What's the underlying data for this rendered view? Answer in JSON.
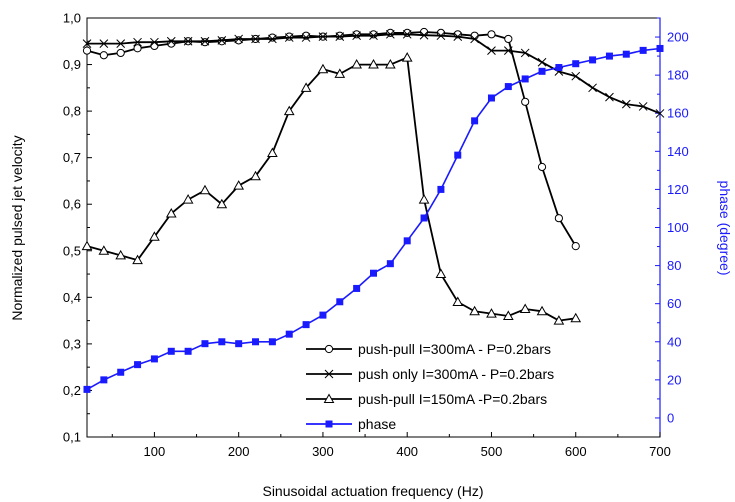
{
  "chart_data": {
    "type": "line",
    "xlabel": "Sinusoidal actuation frequency (Hz)",
    "ylabel": "Normalized pulsed jet velocity",
    "y2label": "phase (degree)",
    "xlim": [
      20,
      700
    ],
    "ylim": [
      0.1,
      1.0
    ],
    "y2lim": [
      -10,
      210
    ],
    "x_ticks": [
      100,
      200,
      300,
      400,
      500,
      600,
      700
    ],
    "y_ticks": [
      "0,1",
      "0,2",
      "0,3",
      "0,4",
      "0,5",
      "0,6",
      "0,7",
      "0,8",
      "0,9",
      "1,0"
    ],
    "y2_ticks": [
      0,
      20,
      40,
      60,
      80,
      100,
      120,
      140,
      160,
      180,
      200
    ],
    "legend_position": "bottom-right",
    "colors": {
      "black": "#000000",
      "phase": "#1a1aff",
      "axis_right": "#1a1aff"
    },
    "series": [
      {
        "name": "push-pull  I=300mA - P=0.2bars",
        "marker": "circle",
        "axis": "left",
        "color": "#000000",
        "x": [
          20,
          40,
          60,
          80,
          100,
          120,
          140,
          160,
          180,
          200,
          220,
          240,
          260,
          280,
          300,
          320,
          340,
          360,
          380,
          400,
          420,
          440,
          460,
          480,
          500,
          520,
          540,
          560,
          580,
          600
        ],
        "y": [
          0.93,
          0.92,
          0.925,
          0.935,
          0.94,
          0.945,
          0.95,
          0.948,
          0.95,
          0.952,
          0.955,
          0.958,
          0.96,
          0.962,
          0.96,
          0.962,
          0.965,
          0.965,
          0.968,
          0.968,
          0.97,
          0.968,
          0.965,
          0.962,
          0.965,
          0.955,
          0.82,
          0.68,
          0.57,
          0.51
        ]
      },
      {
        "name": "push only  I=300mA - P=0.2bars",
        "marker": "x",
        "axis": "left",
        "color": "#000000",
        "x": [
          20,
          40,
          60,
          80,
          100,
          120,
          140,
          160,
          180,
          200,
          220,
          240,
          260,
          280,
          300,
          320,
          340,
          360,
          380,
          400,
          420,
          440,
          460,
          480,
          500,
          520,
          540,
          560,
          580,
          600,
          620,
          640,
          660,
          680,
          700
        ],
        "y": [
          0.945,
          0.945,
          0.945,
          0.948,
          0.948,
          0.95,
          0.95,
          0.95,
          0.952,
          0.955,
          0.955,
          0.955,
          0.958,
          0.958,
          0.96,
          0.96,
          0.962,
          0.962,
          0.965,
          0.965,
          0.963,
          0.962,
          0.96,
          0.955,
          0.93,
          0.93,
          0.925,
          0.905,
          0.885,
          0.875,
          0.85,
          0.83,
          0.815,
          0.81,
          0.795
        ]
      },
      {
        "name": "push-pull I=150mA -P=0.2bars",
        "marker": "triangle",
        "axis": "left",
        "color": "#000000",
        "x": [
          20,
          40,
          60,
          80,
          100,
          120,
          140,
          160,
          180,
          200,
          220,
          240,
          260,
          280,
          300,
          320,
          340,
          360,
          380,
          400,
          420,
          440,
          460,
          480,
          500,
          520,
          540,
          560,
          580,
          600
        ],
        "y": [
          0.51,
          0.5,
          0.49,
          0.48,
          0.53,
          0.58,
          0.61,
          0.63,
          0.6,
          0.64,
          0.66,
          0.71,
          0.8,
          0.85,
          0.89,
          0.88,
          0.9,
          0.9,
          0.9,
          0.915,
          0.61,
          0.45,
          0.39,
          0.37,
          0.365,
          0.36,
          0.375,
          0.37,
          0.35,
          0.355
        ]
      },
      {
        "name": "phase",
        "marker": "square",
        "axis": "right",
        "color": "#1a1aff",
        "x": [
          20,
          40,
          60,
          80,
          100,
          120,
          140,
          160,
          180,
          200,
          220,
          240,
          260,
          280,
          300,
          320,
          340,
          360,
          380,
          400,
          420,
          440,
          460,
          480,
          500,
          520,
          540,
          560,
          580,
          600,
          620,
          640,
          660,
          680,
          700
        ],
        "y": [
          15,
          20,
          24,
          28,
          31,
          35,
          35,
          39,
          40,
          39,
          40,
          40,
          44,
          49,
          54,
          61,
          68,
          76,
          81,
          93,
          105,
          120,
          138,
          156,
          168,
          174,
          178,
          182,
          184,
          186,
          188,
          190,
          191,
          193,
          194
        ]
      }
    ]
  }
}
